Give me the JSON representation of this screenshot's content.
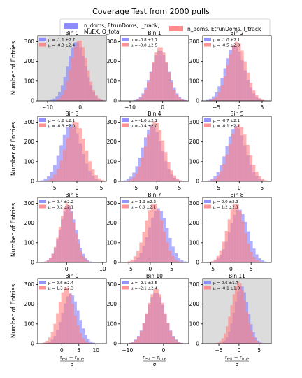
{
  "title": "Coverage Test from 2000 pulls",
  "legend": {
    "entries": [
      {
        "label_lines": [
          "n_doms, EtrunDoms, l_track,",
          "MuEX, Q_total"
        ],
        "color": "#8080f8"
      },
      {
        "label_lines": [
          "n_doms, EtrunDoms, l_track"
        ],
        "color": "#f88080"
      }
    ]
  },
  "ylabel": "Number of Entries",
  "xlabel": {
    "num": "r",
    "num_sub1": "est",
    "num_sub2": "true",
    "den": "σ"
  },
  "colors": {
    "blue": "#8080ff",
    "red": "#ff8080",
    "overlap": "#c0409f",
    "shade": "#dcdcdc"
  },
  "chart_data": [
    {
      "type": "bar",
      "title": "Bin 0",
      "shaded": true,
      "xlim": [
        -13,
        8
      ],
      "xticks": [
        -10,
        0
      ],
      "ylim": [
        0,
        330
      ],
      "yticks": [
        0,
        100,
        200,
        300
      ],
      "annotations": [
        "μ = -1.1 ±2.7",
        "μ = -0.3 ±2.4"
      ],
      "series": [
        {
          "name": "n_doms, EtrunDoms, l_track, MuEX, Q_total",
          "mean": -1.1,
          "std": 2.7,
          "peak": 300
        },
        {
          "name": "n_doms, EtrunDoms, l_track",
          "mean": -0.3,
          "std": 2.4,
          "peak": 310
        }
      ]
    },
    {
      "type": "bar",
      "title": "Bin 1",
      "shaded": false,
      "xlim": [
        -13,
        8
      ],
      "xticks": [
        -10,
        0
      ],
      "ylim": [
        0,
        330
      ],
      "yticks": [
        0,
        100,
        200,
        300
      ],
      "annotations": [
        "μ = -0.8 ±2.7",
        "μ = -0.8 ±2.5"
      ],
      "series": [
        {
          "name": "n_doms, EtrunDoms, l_track, MuEX, Q_total",
          "mean": -0.8,
          "std": 2.7,
          "peak": 255
        },
        {
          "name": "n_doms, EtrunDoms, l_track",
          "mean": -0.8,
          "std": 2.5,
          "peak": 275
        }
      ]
    },
    {
      "type": "bar",
      "title": "Bin 2",
      "shaded": false,
      "xlim": [
        -8,
        7
      ],
      "xticks": [
        -5,
        0,
        5
      ],
      "ylim": [
        0,
        330
      ],
      "yticks": [
        0,
        100,
        200,
        300
      ],
      "annotations": [
        "μ = -1.0 ±2.1",
        "μ = -0.5 ±2.0"
      ],
      "series": [
        {
          "name": "n_doms, EtrunDoms, l_track, MuEX, Q_total",
          "mean": -1.0,
          "std": 2.1,
          "peak": 280
        },
        {
          "name": "n_doms, EtrunDoms, l_track",
          "mean": -0.5,
          "std": 2.0,
          "peak": 300
        }
      ]
    },
    {
      "type": "bar",
      "title": "Bin 3",
      "shaded": false,
      "xlim": [
        -8,
        6
      ],
      "xticks": [
        -5,
        0,
        5
      ],
      "ylim": [
        0,
        330
      ],
      "yticks": [
        0,
        100,
        200,
        300
      ],
      "annotations": [
        "μ = -1.2 ±2.1",
        "μ = -0.3 ±2.0"
      ],
      "series": [
        {
          "name": "n_doms, EtrunDoms, l_track, MuEX, Q_total",
          "mean": -1.2,
          "std": 2.1,
          "peak": 290
        },
        {
          "name": "n_doms, EtrunDoms, l_track",
          "mean": -0.3,
          "std": 2.0,
          "peak": 305
        }
      ]
    },
    {
      "type": "bar",
      "title": "Bin 4",
      "shaded": false,
      "xlim": [
        -8,
        7
      ],
      "xticks": [
        -5,
        0,
        5
      ],
      "ylim": [
        0,
        330
      ],
      "yticks": [
        0,
        100,
        200,
        300
      ],
      "annotations": [
        "μ = -1.0 ±2.1",
        "μ = -0.4 ±2.0"
      ],
      "series": [
        {
          "name": "n_doms, EtrunDoms, l_track, MuEX, Q_total",
          "mean": -1.0,
          "std": 2.1,
          "peak": 285
        },
        {
          "name": "n_doms, EtrunDoms, l_track",
          "mean": -0.4,
          "std": 2.0,
          "peak": 305
        }
      ]
    },
    {
      "type": "bar",
      "title": "Bin 5",
      "shaded": false,
      "xlim": [
        -8,
        7
      ],
      "xticks": [
        -5,
        0,
        5
      ],
      "ylim": [
        0,
        330
      ],
      "yticks": [
        0,
        100,
        200,
        300
      ],
      "annotations": [
        "μ = -0.7 ±2.1",
        "μ = -0.1 ±2.1"
      ],
      "series": [
        {
          "name": "n_doms, EtrunDoms, l_track, MuEX, Q_total",
          "mean": -0.7,
          "std": 2.1,
          "peak": 280
        },
        {
          "name": "n_doms, EtrunDoms, l_track",
          "mean": -0.1,
          "std": 2.1,
          "peak": 290
        }
      ]
    },
    {
      "type": "bar",
      "title": "Bin 6",
      "shaded": false,
      "xlim": [
        -8,
        11
      ],
      "xticks": [
        0,
        10
      ],
      "ylim": [
        0,
        330
      ],
      "yticks": [
        0,
        100,
        200,
        300
      ],
      "annotations": [
        "μ = 0.4 ±2.2",
        "μ = 0.2 ±2.1"
      ],
      "series": [
        {
          "name": "n_doms, EtrunDoms, l_track, MuEX, Q_total",
          "mean": 0.4,
          "std": 2.2,
          "peak": 290
        },
        {
          "name": "n_doms, EtrunDoms, l_track",
          "mean": 0.2,
          "std": 2.1,
          "peak": 300
        }
      ]
    },
    {
      "type": "bar",
      "title": "Bin 7",
      "shaded": false,
      "xlim": [
        -7,
        9
      ],
      "xticks": [
        -5,
        0,
        5
      ],
      "ylim": [
        0,
        330
      ],
      "yticks": [
        0,
        100,
        200,
        300
      ],
      "annotations": [
        "μ = 1.9 ±2.2",
        "μ = 0.9 ±2.1"
      ],
      "series": [
        {
          "name": "n_doms, EtrunDoms, l_track, MuEX, Q_total",
          "mean": 1.9,
          "std": 2.2,
          "peak": 275
        },
        {
          "name": "n_doms, EtrunDoms, l_track",
          "mean": 0.9,
          "std": 2.1,
          "peak": 300
        }
      ]
    },
    {
      "type": "bar",
      "title": "Bin 8",
      "shaded": false,
      "xlim": [
        -7,
        10
      ],
      "xticks": [
        -5,
        0,
        5
      ],
      "ylim": [
        0,
        330
      ],
      "yticks": [
        0,
        100,
        200,
        300
      ],
      "annotations": [
        "μ = 2.0 ±2.3",
        "μ = 1.2 ±2.1"
      ],
      "series": [
        {
          "name": "n_doms, EtrunDoms, l_track, MuEX, Q_total",
          "mean": 2.0,
          "std": 2.3,
          "peak": 270
        },
        {
          "name": "n_doms, EtrunDoms, l_track",
          "mean": 1.2,
          "std": 2.1,
          "peak": 300
        }
      ]
    },
    {
      "type": "bar",
      "title": "Bin 9",
      "shaded": false,
      "xlim": [
        -7,
        13
      ],
      "xticks": [
        0,
        5,
        10
      ],
      "ylim": [
        0,
        330
      ],
      "yticks": [
        0,
        100,
        200,
        300
      ],
      "annotations": [
        "μ = 2.6 ±2.4",
        "μ = 1.3 ±2.3"
      ],
      "series": [
        {
          "name": "n_doms, EtrunDoms, l_track, MuEX, Q_total",
          "mean": 2.6,
          "std": 2.4,
          "peak": 255
        },
        {
          "name": "n_doms, EtrunDoms, l_track",
          "mean": 1.3,
          "std": 2.3,
          "peak": 290
        }
      ]
    },
    {
      "type": "bar",
      "title": "Bin 10",
      "shaded": false,
      "xlim": [
        -12,
        7
      ],
      "xticks": [
        -10,
        0
      ],
      "ylim": [
        0,
        330
      ],
      "yticks": [
        0,
        100,
        200,
        300
      ],
      "annotations": [
        "μ = -2.1 ±2.5",
        "μ = -2.1 ±2.4"
      ],
      "series": [
        {
          "name": "n_doms, EtrunDoms, l_track, MuEX, Q_total",
          "mean": -2.1,
          "std": 2.5,
          "peak": 260
        },
        {
          "name": "n_doms, EtrunDoms, l_track",
          "mean": -2.1,
          "std": 2.4,
          "peak": 280
        }
      ]
    },
    {
      "type": "bar",
      "title": "Bin 11",
      "shaded": true,
      "xlim": [
        -9,
        8
      ],
      "xticks": [
        -5,
        0,
        5
      ],
      "ylim": [
        0,
        330
      ],
      "yticks": [
        0,
        100,
        200,
        300
      ],
      "annotations": [
        "μ = 0.6 ±1.7",
        "μ = -0.1 ±1.8"
      ],
      "series": [
        {
          "name": "n_doms, EtrunDoms, l_track, MuEX, Q_total",
          "mean": 0.6,
          "std": 1.7,
          "peak": 295
        },
        {
          "name": "n_doms, EtrunDoms, l_track",
          "mean": -0.1,
          "std": 1.8,
          "peak": 315
        }
      ]
    }
  ]
}
